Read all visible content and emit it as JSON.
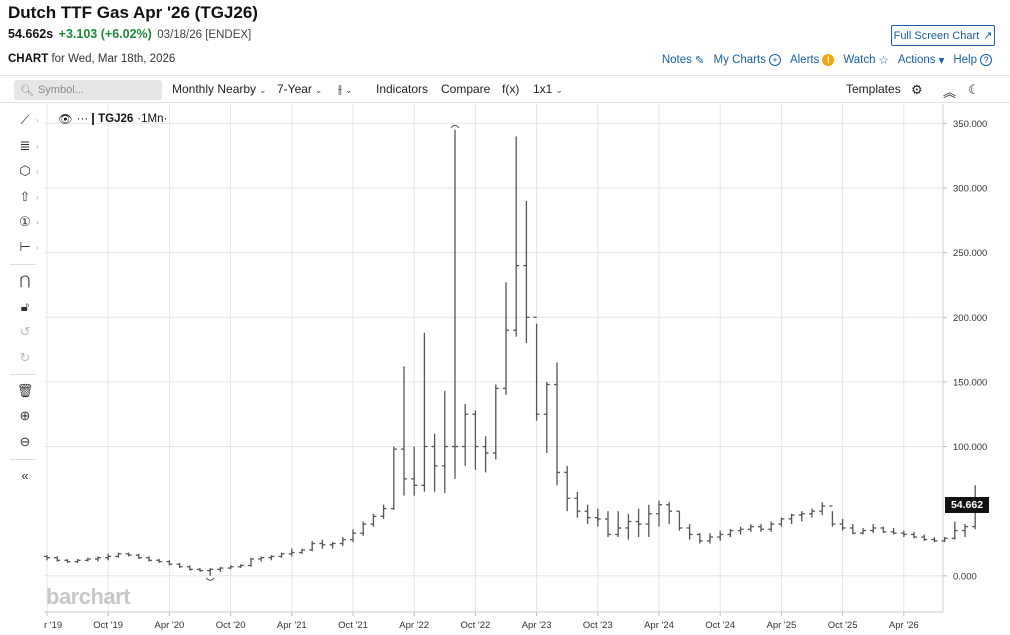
{
  "header": {
    "title": "Dutch TTF Gas Apr '26 (TGJ26)",
    "last": "54.662s",
    "change": "+3.103 (+6.02%)",
    "meta": "03/18/26 [ENDEX]",
    "fullscreen_label": "Full Screen Chart"
  },
  "subbar": {
    "label": "CHART",
    "date_text": "for Wed, Mar 18th, 2026",
    "links": [
      "Notes",
      "My Charts",
      "Alerts",
      "Watch",
      "Actions",
      "Help"
    ]
  },
  "toolbar": {
    "search_placeholder": "Symbol...",
    "period": "Monthly Nearby",
    "range": "7-Year",
    "indicators": "Indicators",
    "compare": "Compare",
    "fx": "f(x)",
    "layout": "1x1",
    "templates": "Templates"
  },
  "legend": {
    "symbol": "TGJ26",
    "interval": "·1Mn·"
  },
  "watermark": "barchart",
  "colors": {
    "bars": "#555555",
    "grid": "#e6e6e6",
    "link": "#1a5fa8",
    "positive": "#1e8c3a"
  },
  "chart_data": {
    "type": "ohlc",
    "x_tick_labels": [
      "r '19",
      "Oct '19",
      "Apr '20",
      "Oct '20",
      "Apr '21",
      "Oct '21",
      "Apr '22",
      "Oct '22",
      "Apr '23",
      "Oct '23",
      "Apr '24",
      "Oct '24",
      "Apr '25",
      "Oct '25",
      "Apr '26"
    ],
    "y_tick_labels": [
      "350.000",
      "300.000",
      "250.000",
      "200.000",
      "150.000",
      "100.000",
      "0.000"
    ],
    "ylim": [
      -28,
      365
    ],
    "last_value_label": "54.662",
    "grid": true,
    "series": [
      {
        "start": "2019-03",
        "bars": [
          [
            15,
            16,
            12,
            14
          ],
          [
            14,
            15,
            11,
            12
          ],
          [
            12,
            13,
            10,
            11
          ],
          [
            11,
            13,
            10,
            12
          ],
          [
            12,
            14,
            11,
            13
          ],
          [
            13,
            15,
            11,
            14
          ],
          [
            14,
            17,
            12,
            15
          ],
          [
            15,
            18,
            14,
            17
          ],
          [
            17,
            18,
            15,
            16
          ],
          [
            16,
            17,
            13,
            14
          ],
          [
            14,
            15,
            11,
            12
          ],
          [
            12,
            13,
            10,
            11
          ],
          [
            11,
            12,
            8,
            9
          ],
          [
            9,
            10,
            6,
            7
          ],
          [
            7,
            8,
            4,
            5
          ],
          [
            5,
            6,
            3,
            4
          ],
          [
            4,
            6,
            0,
            5
          ],
          [
            5,
            7,
            3,
            6
          ],
          [
            6,
            8,
            5,
            7
          ],
          [
            7,
            9,
            6,
            8
          ],
          [
            8,
            14,
            7,
            13
          ],
          [
            13,
            15,
            11,
            14
          ],
          [
            14,
            16,
            12,
            15
          ],
          [
            15,
            18,
            14,
            17
          ],
          [
            17,
            21,
            15,
            18
          ],
          [
            18,
            21,
            17,
            20
          ],
          [
            20,
            27,
            19,
            25
          ],
          [
            25,
            28,
            21,
            24
          ],
          [
            24,
            26,
            21,
            25
          ],
          [
            25,
            30,
            23,
            28
          ],
          [
            28,
            36,
            26,
            33
          ],
          [
            33,
            42,
            31,
            40
          ],
          [
            40,
            48,
            38,
            46
          ],
          [
            46,
            55,
            44,
            52
          ],
          [
            52,
            100,
            51,
            98
          ],
          [
            98,
            162,
            62,
            75
          ],
          [
            75,
            100,
            62,
            70
          ],
          [
            70,
            188,
            65,
            100
          ],
          [
            100,
            110,
            65,
            85
          ],
          [
            85,
            143,
            64,
            100
          ],
          [
            100,
            345,
            75,
            100
          ],
          [
            100,
            133,
            85,
            125
          ],
          [
            125,
            128,
            82,
            100
          ],
          [
            100,
            108,
            80,
            95
          ],
          [
            95,
            148,
            90,
            145
          ],
          [
            145,
            227,
            140,
            190
          ],
          [
            190,
            340,
            185,
            240
          ],
          [
            240,
            290,
            180,
            200
          ],
          [
            200,
            195,
            120,
            125
          ],
          [
            125,
            150,
            95,
            148
          ],
          [
            148,
            165,
            70,
            80
          ],
          [
            80,
            85,
            50,
            60
          ],
          [
            60,
            65,
            45,
            50
          ],
          [
            50,
            55,
            40,
            45
          ],
          [
            45,
            52,
            38,
            44
          ],
          [
            44,
            50,
            30,
            32
          ],
          [
            32,
            50,
            30,
            37
          ],
          [
            37,
            48,
            28,
            42
          ],
          [
            42,
            52,
            30,
            40
          ],
          [
            40,
            55,
            30,
            48
          ],
          [
            48,
            58,
            38,
            55
          ],
          [
            55,
            57,
            40,
            50
          ],
          [
            50,
            50,
            35,
            37
          ],
          [
            37,
            40,
            28,
            32
          ],
          [
            32,
            33,
            25,
            27
          ],
          [
            27,
            33,
            25,
            30
          ],
          [
            30,
            35,
            27,
            32
          ],
          [
            32,
            36,
            30,
            35
          ],
          [
            35,
            38,
            32,
            36
          ],
          [
            36,
            40,
            34,
            38
          ],
          [
            38,
            40,
            34,
            36
          ],
          [
            36,
            42,
            34,
            40
          ],
          [
            40,
            45,
            38,
            44
          ],
          [
            44,
            48,
            40,
            47
          ],
          [
            47,
            50,
            42,
            48
          ],
          [
            48,
            52,
            45,
            50
          ],
          [
            50,
            57,
            47,
            54
          ],
          [
            54,
            50,
            38,
            40
          ],
          [
            40,
            44,
            35,
            37
          ],
          [
            37,
            40,
            32,
            33
          ],
          [
            33,
            37,
            32,
            35
          ],
          [
            35,
            40,
            33,
            37
          ],
          [
            37,
            38,
            33,
            34
          ],
          [
            34,
            37,
            32,
            33
          ],
          [
            33,
            35,
            30,
            32
          ],
          [
            32,
            34,
            29,
            30
          ],
          [
            30,
            32,
            27,
            28
          ],
          [
            28,
            30,
            26,
            27
          ],
          [
            27,
            30,
            26,
            29
          ],
          [
            29,
            42,
            28,
            35
          ],
          [
            35,
            40,
            30,
            38
          ],
          [
            38,
            70,
            36,
            54.662
          ]
        ]
      }
    ]
  }
}
